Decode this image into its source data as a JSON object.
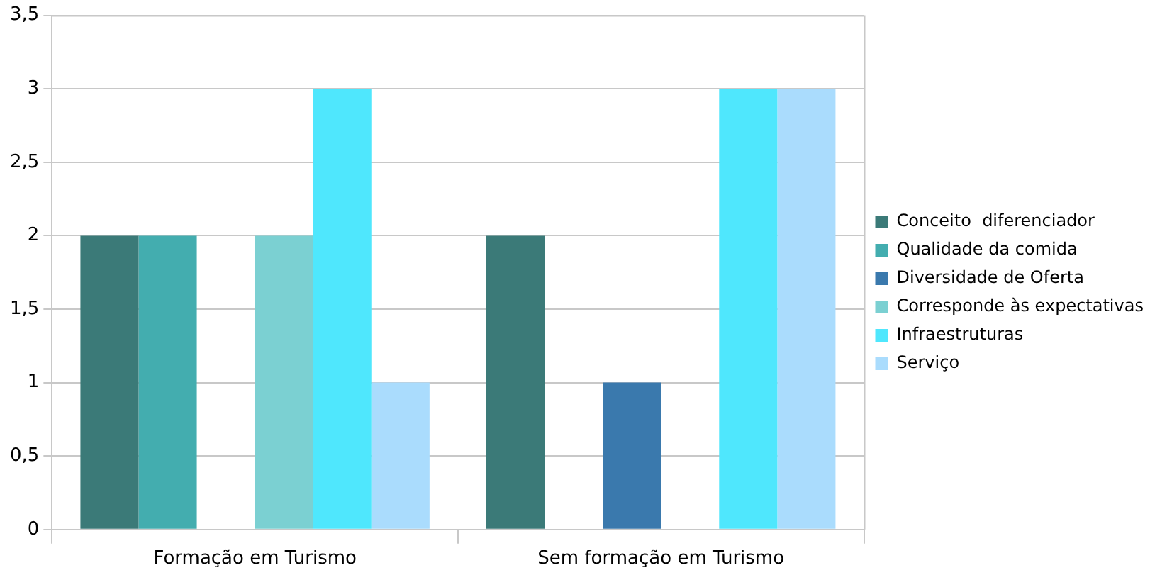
{
  "chart_data": {
    "type": "bar",
    "categories": [
      "Formação em Turismo",
      "Sem formação em Turismo"
    ],
    "series": [
      {
        "name": "Conceito  diferenciador",
        "color": "#3b7a78",
        "values": [
          2,
          2
        ]
      },
      {
        "name": "Qualidade da comida",
        "color": "#43adaf",
        "values": [
          2,
          0
        ]
      },
      {
        "name": "Diversidade de Oferta",
        "color": "#3a79ad",
        "values": [
          0,
          1
        ]
      },
      {
        "name": "Corresponde às expectativas",
        "color": "#7bd0d2",
        "values": [
          2,
          0
        ]
      },
      {
        "name": "Infraestruturas",
        "color": "#4fe7fd",
        "values": [
          3,
          3
        ]
      },
      {
        "name": "Serviço",
        "color": "#aadcfd",
        "values": [
          1,
          3
        ]
      }
    ],
    "ylim": [
      0,
      3.5
    ],
    "yticks": [
      0,
      {
        "value": 0.5,
        "label": "0,5"
      },
      1,
      {
        "value": 1.5,
        "label": "1,5"
      },
      2,
      {
        "value": 2.5,
        "label": "2,5"
      },
      3,
      {
        "value": 3.5,
        "label": "3,5"
      }
    ],
    "grid": "y",
    "legend": "right"
  }
}
